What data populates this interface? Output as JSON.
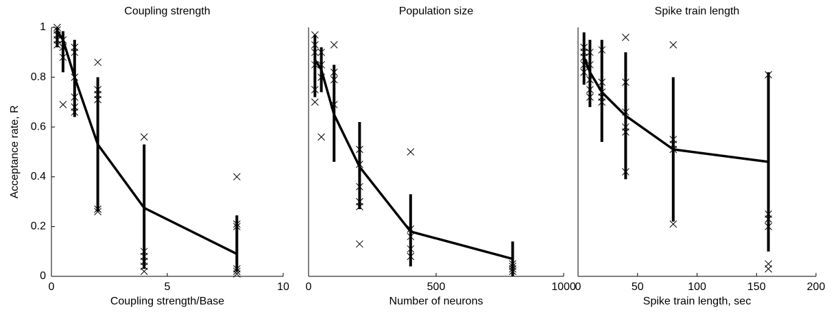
{
  "chart_data": [
    {
      "type": "line",
      "title": "Coupling strength",
      "xlabel": "Coupling strength/Base",
      "ylabel": "Acceptance rate, R",
      "xlim": [
        0,
        10
      ],
      "xticks": [
        0,
        5,
        10
      ],
      "ylim": [
        0,
        1
      ],
      "yticks": [
        0,
        0.2,
        0.4,
        0.6,
        0.8,
        1
      ],
      "color": "#000000",
      "x": [
        0.25,
        0.5,
        1,
        2,
        4,
        8
      ],
      "values": [
        0.985,
        0.95,
        0.8,
        0.53,
        0.275,
        0.09
      ],
      "lower": [
        0.92,
        0.82,
        0.64,
        0.26,
        0.03,
        0.02
      ],
      "upper": [
        1.0,
        0.985,
        0.95,
        0.8,
        0.53,
        0.245
      ],
      "points": {
        "x": [
          0.25,
          0.25,
          0.25,
          0.25,
          0.25,
          0.5,
          0.5,
          0.5,
          0.5,
          1,
          1,
          1,
          1,
          1,
          1,
          2,
          2,
          2,
          2,
          2,
          2,
          4,
          4,
          4,
          4,
          4,
          4,
          8,
          8,
          8,
          8,
          8,
          8
        ],
        "y": [
          1.0,
          0.99,
          0.97,
          0.95,
          0.93,
          0.95,
          0.92,
          0.88,
          0.69,
          0.92,
          0.9,
          0.8,
          0.72,
          0.68,
          0.66,
          0.86,
          0.75,
          0.73,
          0.71,
          0.27,
          0.26,
          0.56,
          0.1,
          0.08,
          0.06,
          0.04,
          0.02,
          0.4,
          0.21,
          0.2,
          0.03,
          0.02,
          0.01
        ]
      }
    },
    {
      "type": "line",
      "title": "Population size",
      "xlabel": "Number of neurons",
      "xlim": [
        0,
        1000
      ],
      "xticks": [
        0,
        500,
        1000
      ],
      "ylim": [
        0,
        1
      ],
      "color": "#000000",
      "x": [
        25,
        50,
        100,
        200,
        400,
        800
      ],
      "values": [
        0.87,
        0.83,
        0.65,
        0.44,
        0.18,
        0.07
      ],
      "lower": [
        0.72,
        0.74,
        0.46,
        0.27,
        0.04,
        0.0
      ],
      "upper": [
        0.97,
        0.92,
        0.85,
        0.62,
        0.33,
        0.14
      ],
      "points": {
        "x": [
          25,
          25,
          25,
          25,
          25,
          25,
          50,
          50,
          50,
          50,
          100,
          100,
          100,
          100,
          200,
          200,
          200,
          200,
          200,
          200,
          400,
          400,
          400,
          400,
          400,
          800,
          800,
          800,
          800
        ],
        "y": [
          0.97,
          0.93,
          0.9,
          0.85,
          0.75,
          0.7,
          0.9,
          0.85,
          0.8,
          0.56,
          0.93,
          0.82,
          0.79,
          0.69,
          0.51,
          0.45,
          0.36,
          0.3,
          0.28,
          0.13,
          0.5,
          0.19,
          0.16,
          0.11,
          0.08,
          0.05,
          0.04,
          0.03,
          0.02
        ]
      }
    },
    {
      "type": "line",
      "title": "Spike train length",
      "xlabel": "Spike train length, sec",
      "xlim": [
        0,
        200
      ],
      "xticks": [
        0,
        50,
        100,
        150,
        200
      ],
      "ylim": [
        0,
        1
      ],
      "color": "#000000",
      "x": [
        5,
        10,
        20,
        40,
        80,
        160
      ],
      "values": [
        0.88,
        0.82,
        0.74,
        0.645,
        0.51,
        0.46
      ],
      "lower": [
        0.77,
        0.68,
        0.54,
        0.39,
        0.22,
        0.1
      ],
      "upper": [
        0.98,
        0.95,
        0.95,
        0.9,
        0.8,
        0.82
      ],
      "points": {
        "x": [
          5,
          5,
          5,
          5,
          5,
          10,
          10,
          10,
          10,
          10,
          20,
          20,
          20,
          20,
          20,
          40,
          40,
          40,
          40,
          40,
          40,
          80,
          80,
          80,
          80,
          80,
          160,
          160,
          160,
          160,
          160,
          160
        ],
        "y": [
          0.92,
          0.9,
          0.88,
          0.85,
          0.82,
          0.9,
          0.85,
          0.79,
          0.75,
          0.72,
          0.91,
          0.78,
          0.74,
          0.72,
          0.7,
          0.96,
          0.78,
          0.66,
          0.6,
          0.58,
          0.42,
          0.93,
          0.55,
          0.53,
          0.51,
          0.21,
          0.81,
          0.25,
          0.23,
          0.2,
          0.05,
          0.03
        ]
      }
    }
  ]
}
